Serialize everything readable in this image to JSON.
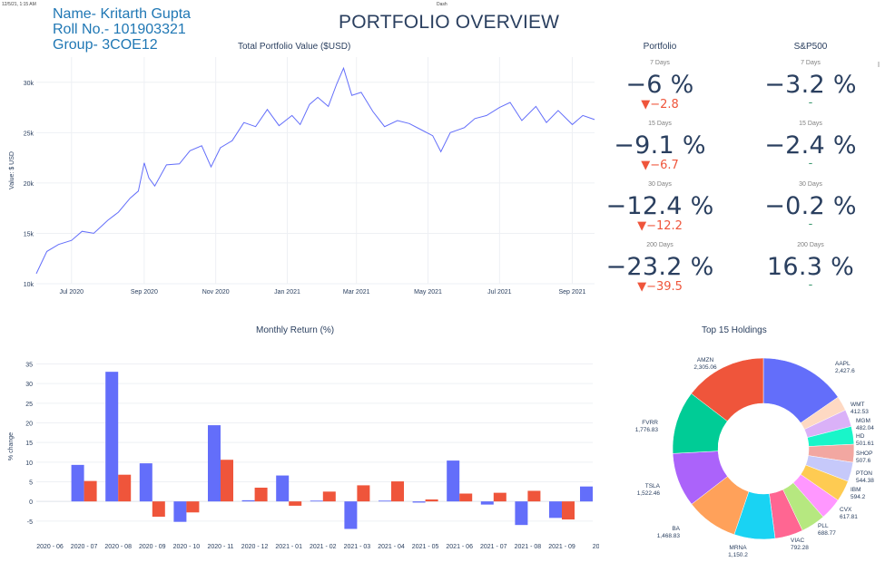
{
  "browser": {
    "timestamp": "12/5/21, 1:15 AM",
    "tab_title": "Dash"
  },
  "student": {
    "name": "Name- Kritarth Gupta",
    "roll": "Roll No.- 101903321",
    "group": "Group- 3COE12"
  },
  "page_title": "PORTFOLIO OVERVIEW",
  "colors": {
    "line": "#636efa",
    "bar1": "#636efa",
    "bar2": "#ef553b",
    "down": "#ef553b",
    "flat": "#3d9970",
    "text": "#2a3f5f"
  },
  "indicators": {
    "portfolio_header": "Portfolio",
    "sp500_header": "S&P500",
    "rows": [
      {
        "period": "7 Days",
        "portfolio": "−6 %",
        "portfolio_delta": "▼−2.8",
        "sp500": "−3.2 %",
        "sp500_delta": "-"
      },
      {
        "period": "15 Days",
        "portfolio": "−9.1 %",
        "portfolio_delta": "▼−6.7",
        "sp500": "−2.4 %",
        "sp500_delta": "-"
      },
      {
        "period": "30 Days",
        "portfolio": "−12.4 %",
        "portfolio_delta": "▼−12.2",
        "sp500": "−0.2 %",
        "sp500_delta": "-"
      },
      {
        "period": "200 Days",
        "portfolio": "−23.2 %",
        "portfolio_delta": "▼−39.5",
        "sp500": "16.3 %",
        "sp500_delta": "-"
      }
    ]
  },
  "chart_data": [
    {
      "type": "line",
      "title": "Total Portfolio Value ($USD)",
      "ylabel": "Value: $ USD",
      "xlabel": "",
      "x_ticks": [
        "Jul 2020",
        "Sep 2020",
        "Nov 2020",
        "Jan 2021",
        "Mar 2021",
        "May 2021",
        "Jul 2021",
        "Sep 2021"
      ],
      "y_ticks": [
        "10k",
        "15k",
        "20k",
        "25k",
        "30k"
      ],
      "xlim": [
        "2020-06-01",
        "2021-09-20"
      ],
      "ylim": [
        10000,
        32500
      ],
      "grid": true,
      "series": [
        {
          "x": [
            "2020-06-01",
            "2020-06-10",
            "2020-06-20",
            "2020-07-01",
            "2020-07-10",
            "2020-07-20",
            "2020-08-01",
            "2020-08-10",
            "2020-08-20",
            "2020-08-27",
            "2020-09-01",
            "2020-09-05",
            "2020-09-10",
            "2020-09-20",
            "2020-10-01",
            "2020-10-10",
            "2020-10-20",
            "2020-10-28",
            "2020-11-05",
            "2020-11-15",
            "2020-11-25",
            "2020-12-05",
            "2020-12-15",
            "2020-12-25",
            "2021-01-05",
            "2021-01-12",
            "2021-01-20",
            "2021-01-27",
            "2021-02-05",
            "2021-02-12",
            "2021-02-18",
            "2021-02-25",
            "2021-03-05",
            "2021-03-15",
            "2021-03-25",
            "2021-04-05",
            "2021-04-15",
            "2021-04-25",
            "2021-05-05",
            "2021-05-12",
            "2021-05-20",
            "2021-06-01",
            "2021-06-10",
            "2021-06-20",
            "2021-07-01",
            "2021-07-10",
            "2021-07-20",
            "2021-08-01",
            "2021-08-10",
            "2021-08-20",
            "2021-09-01",
            "2021-09-10",
            "2021-09-20"
          ],
          "y": [
            11000,
            13200,
            13900,
            14300,
            15200,
            15000,
            16300,
            17100,
            18500,
            19200,
            22000,
            20500,
            19700,
            21800,
            21900,
            23200,
            23700,
            21600,
            23500,
            24200,
            26000,
            25600,
            27300,
            25700,
            26700,
            25800,
            27800,
            28500,
            27600,
            29800,
            31400,
            28700,
            29000,
            27100,
            25600,
            26200,
            25900,
            25300,
            24700,
            23100,
            25000,
            25500,
            26400,
            26700,
            27500,
            28000,
            26200,
            27600,
            26000,
            27200,
            25800,
            26700,
            26300
          ]
        }
      ]
    },
    {
      "type": "bar",
      "title": "Monthly Return (%)",
      "ylabel": "% change",
      "xlabel": "",
      "categories": [
        "2020 - 06",
        "2020 - 07",
        "2020 - 08",
        "2020 - 09",
        "2020 - 10",
        "2020 - 11",
        "2020 - 12",
        "2021 - 01",
        "2021 - 02",
        "2021 - 03",
        "2021 - 04",
        "2021 - 05",
        "2021 - 06",
        "2021 - 07",
        "2021 - 08",
        "2021 - 09",
        "20"
      ],
      "ylim": [
        -8.5,
        36.5
      ],
      "y_ticks": [
        "-5",
        "0",
        "5",
        "10",
        "15",
        "20",
        "25",
        "30",
        "35"
      ],
      "grid": true,
      "series": [
        {
          "values": [
            0,
            9.3,
            33,
            9.7,
            -5.2,
            19.4,
            0.3,
            6.6,
            0.2,
            -7,
            0.2,
            -0.3,
            10.4,
            -0.8,
            -6,
            -4.2,
            3.8
          ]
        },
        {
          "values": [
            0,
            5.2,
            6.8,
            -3.9,
            -2.8,
            10.6,
            3.5,
            -1.1,
            2.5,
            4.1,
            5.1,
            0.5,
            2,
            2.2,
            2.7,
            -4.6,
            0
          ]
        }
      ]
    },
    {
      "type": "pie",
      "title": "Top 15 Holdings",
      "hole": true,
      "slices": [
        {
          "label": "AAPL",
          "value": 2427.6,
          "value_text": "2,427.6",
          "color": "#636efa"
        },
        {
          "label": "WMT",
          "value": 412.53,
          "value_text": "412.53",
          "color": "#fed9c3"
        },
        {
          "label": "MGM",
          "value": 482.04,
          "value_text": "482.04",
          "color": "#dab1f8"
        },
        {
          "label": "HD",
          "value": 501.61,
          "value_text": "501.61",
          "color": "#19f5c9"
        },
        {
          "label": "SHOP",
          "value": 507.6,
          "value_text": "507.6",
          "color": "#f2a7a1"
        },
        {
          "label": "PTON",
          "value": 544.38,
          "value_text": "544.38",
          "color": "#c6c9fa"
        },
        {
          "label": "IBM",
          "value": 594.2,
          "value_text": "594.2",
          "color": "#fecb52"
        },
        {
          "label": "CVX",
          "value": 617.81,
          "value_text": "617.81",
          "color": "#ff97ff"
        },
        {
          "label": "PLL",
          "value": 688.77,
          "value_text": "688.77",
          "color": "#b6e880"
        },
        {
          "label": "VIAC",
          "value": 792.28,
          "value_text": "792.28",
          "color": "#ff6692"
        },
        {
          "label": "MRNA",
          "value": 1150.2,
          "value_text": "1,150.2",
          "color": "#19d3f3"
        },
        {
          "label": "BA",
          "value": 1468.83,
          "value_text": "1,468.83",
          "color": "#ffa15a"
        },
        {
          "label": "TSLA",
          "value": 1522.46,
          "value_text": "1,522.46",
          "color": "#ab63fa"
        },
        {
          "label": "FVRR",
          "value": 1776.83,
          "value_text": "1,776.83",
          "color": "#00cc96"
        },
        {
          "label": "AMZN",
          "value": 2305.06,
          "value_text": "2,305.06",
          "color": "#ef553b"
        }
      ]
    }
  ]
}
